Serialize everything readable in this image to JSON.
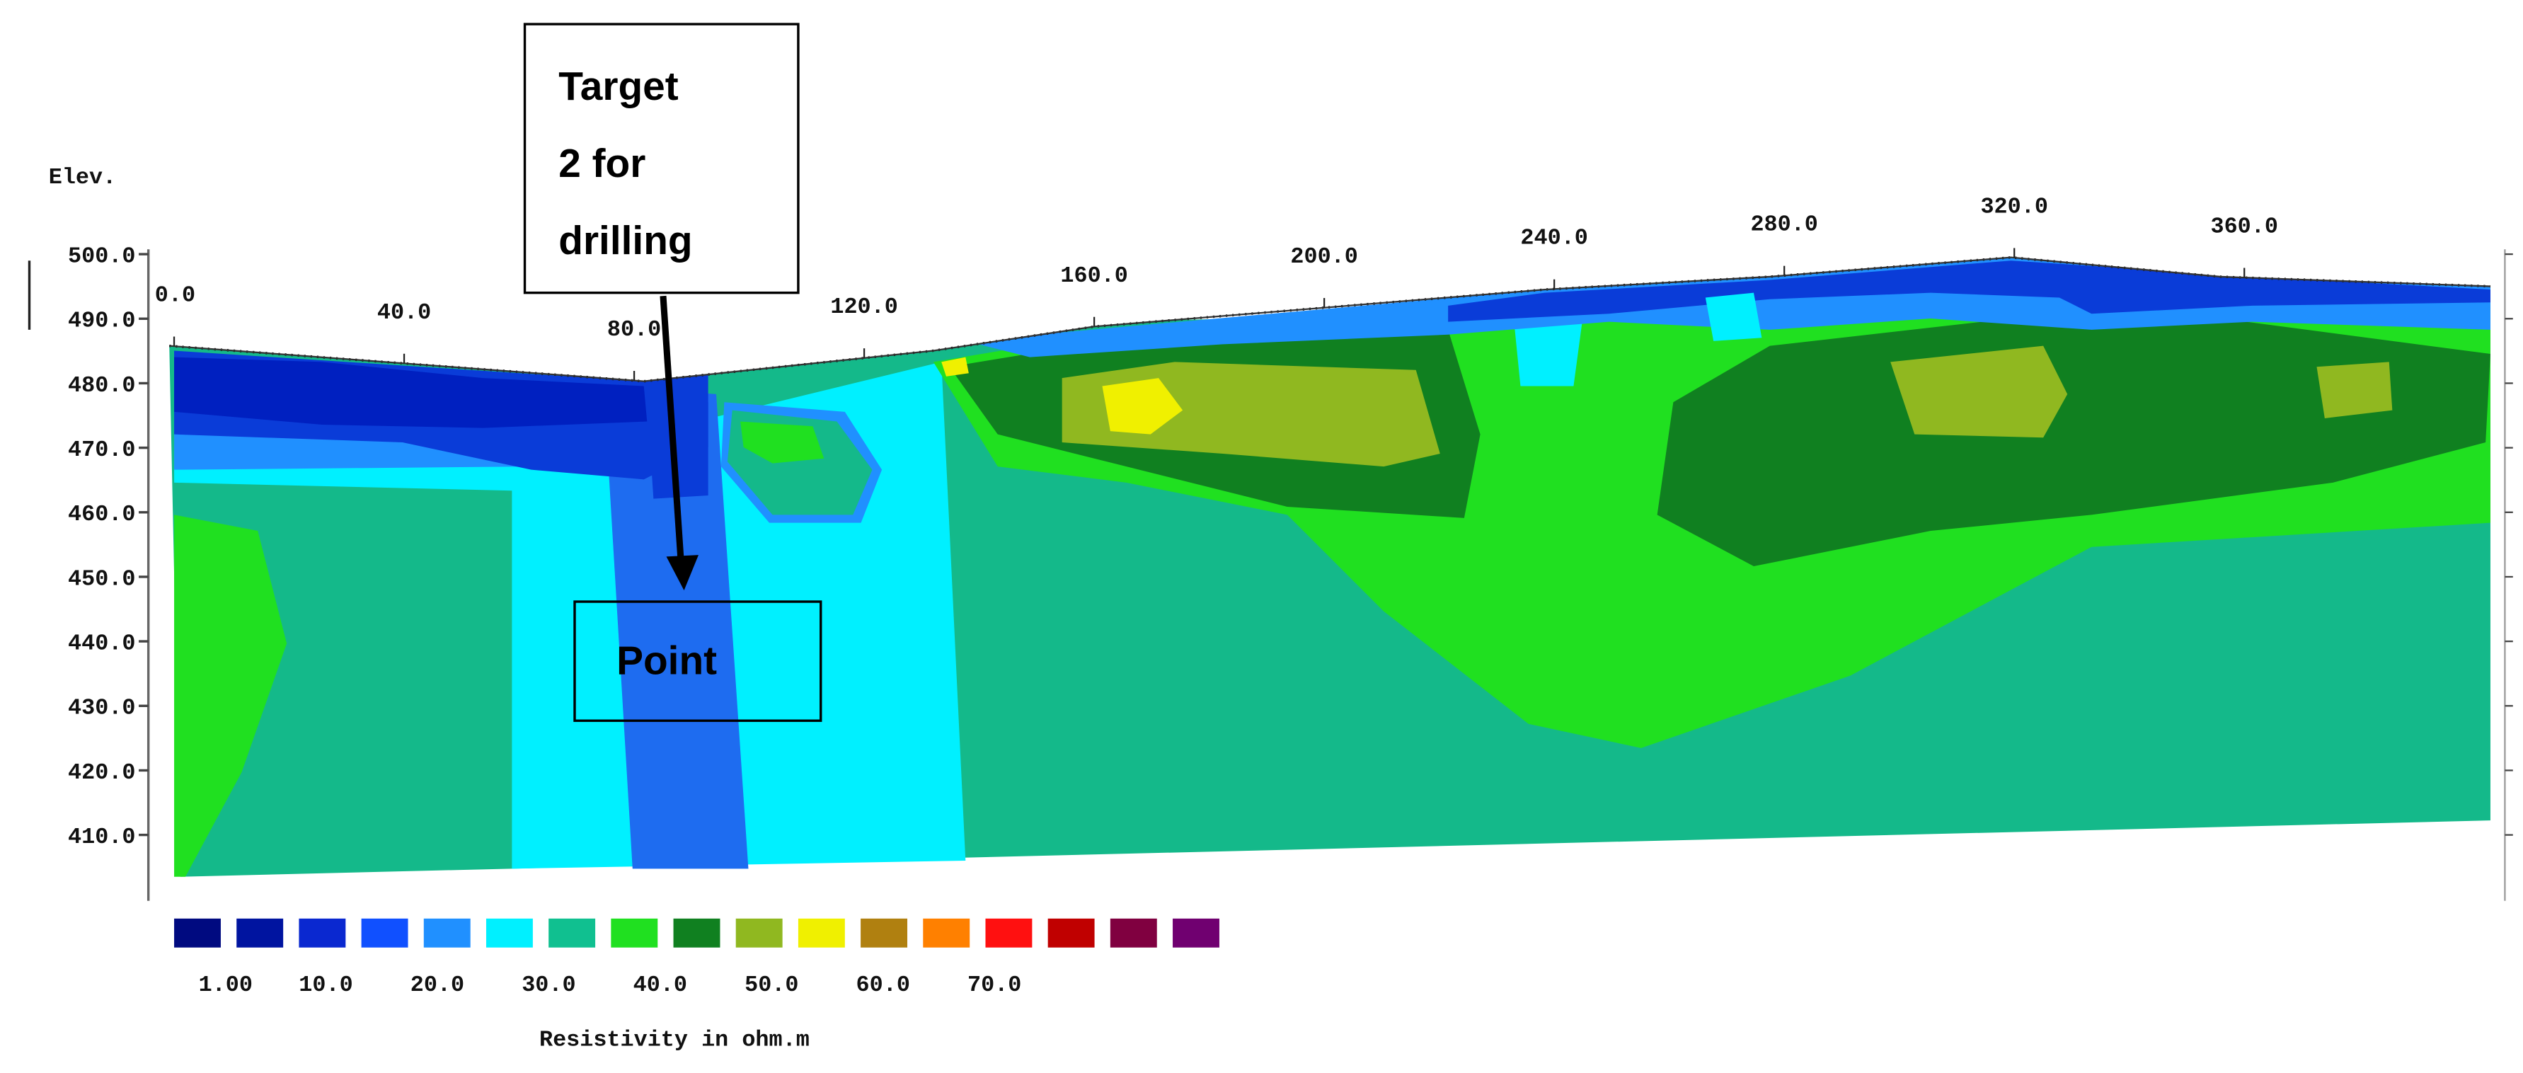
{
  "chart_data": {
    "type": "contour",
    "y_label": "Elev.",
    "xticks": [
      {
        "value": 0,
        "label": "0.0"
      },
      {
        "value": 40,
        "label": "40.0"
      },
      {
        "value": 80,
        "label": "80.0"
      },
      {
        "value": 120,
        "label": "120.0"
      },
      {
        "value": 160,
        "label": "160.0"
      },
      {
        "value": 200,
        "label": "200.0"
      },
      {
        "value": 240,
        "label": "240.0"
      },
      {
        "value": 280,
        "label": "280.0"
      },
      {
        "value": 320,
        "label": "320.0"
      },
      {
        "value": 360,
        "label": "360.0"
      }
    ],
    "yticks": [
      {
        "value": 500,
        "label": "500.0"
      },
      {
        "value": 490,
        "label": "490.0"
      },
      {
        "value": 480,
        "label": "480.0"
      },
      {
        "value": 470,
        "label": "470.0"
      },
      {
        "value": 460,
        "label": "460.0"
      },
      {
        "value": 450,
        "label": "450.0"
      },
      {
        "value": 440,
        "label": "440.0"
      },
      {
        "value": 430,
        "label": "430.0"
      },
      {
        "value": 420,
        "label": "420.0"
      },
      {
        "value": 410,
        "label": "410.0"
      }
    ],
    "colorscale": [
      "#000a80",
      "#0014a0",
      "#0a28d0",
      "#1050ff",
      "#2090ff",
      "#00f0ff",
      "#10c090",
      "#20e020",
      "#108020",
      "#90b820",
      "#f0f000",
      "#b08010",
      "#ff8000",
      "#ff1010",
      "#c00000",
      "#800040",
      "#700070"
    ],
    "colorbar_ticks": [
      {
        "value": 1,
        "label": "1.00"
      },
      {
        "value": 10,
        "label": "10.0"
      },
      {
        "value": 20,
        "label": "20.0"
      },
      {
        "value": 30,
        "label": "30.0"
      },
      {
        "value": 40,
        "label": "40.0"
      },
      {
        "value": 50,
        "label": "50.0"
      },
      {
        "value": 60,
        "label": "60.0"
      },
      {
        "value": 70,
        "label": "70.0"
      }
    ],
    "colorbar_label": "Resistivity in ohm.m",
    "annotations": [
      {
        "lines": [
          "Target",
          "2 for",
          "drilling"
        ]
      },
      {
        "lines": [
          "Point"
        ]
      }
    ]
  }
}
